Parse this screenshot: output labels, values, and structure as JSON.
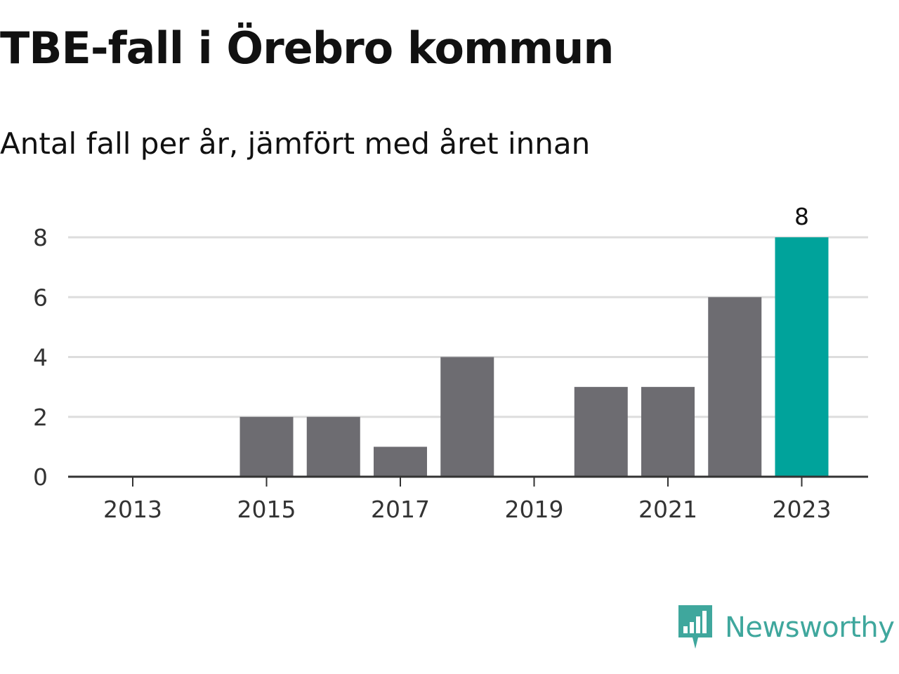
{
  "header": {
    "title": "TBE-fall i Örebro kommun",
    "subtitle": "Antal fall per år, jämfört med året innan"
  },
  "brand": {
    "name": "Newsworthy",
    "icon": "newsworthy-logo-icon",
    "color": "#3fa79d"
  },
  "colors": {
    "bar_default": "#6d6c71",
    "bar_highlight": "#00a39b",
    "grid": "#dddddd",
    "axis": "#333333"
  },
  "chart_data": {
    "type": "bar",
    "title": "TBE-fall i Örebro kommun",
    "subtitle": "Antal fall per år, jämfört med året innan",
    "xlabel": "",
    "ylabel": "",
    "categories": [
      "2013",
      "2014",
      "2015",
      "2016",
      "2017",
      "2018",
      "2019",
      "2020",
      "2021",
      "2022",
      "2023"
    ],
    "values": [
      0,
      0,
      2,
      2,
      1,
      4,
      0,
      3,
      3,
      6,
      8
    ],
    "highlight_category": "2023",
    "value_labels": [
      {
        "category": "2023",
        "text": "8"
      }
    ],
    "x_tick_labels": [
      "2013",
      "2015",
      "2017",
      "2019",
      "2021",
      "2023"
    ],
    "y_ticks": [
      0,
      2,
      4,
      6,
      8
    ],
    "ylim": [
      0,
      8
    ],
    "grid": true,
    "legend": false
  }
}
